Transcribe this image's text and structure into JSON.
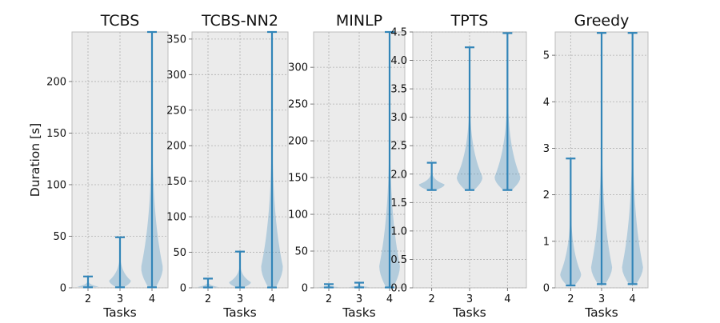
{
  "chart_data": {
    "type": "violin",
    "shared": {
      "xlabel": "Tasks",
      "ylabel": "Duration [s]",
      "categories": [
        "2",
        "3",
        "4"
      ],
      "color": "#3285b8",
      "grid": true
    },
    "panels": [
      {
        "title": "TCBS",
        "ylim": [
          0,
          248
        ],
        "yticks": [
          0,
          50,
          100,
          150,
          200
        ],
        "series": [
          {
            "task": "2",
            "min": 0.5,
            "max": 11,
            "peak": 1
          },
          {
            "task": "3",
            "min": 0.5,
            "max": 49,
            "peak": 7
          },
          {
            "task": "4",
            "min": 0.5,
            "max": 248,
            "peak": 20
          }
        ]
      },
      {
        "title": "TCBS-NN2",
        "ylim": [
          0,
          360
        ],
        "yticks": [
          0,
          50,
          100,
          150,
          200,
          250,
          300,
          350
        ],
        "series": [
          {
            "task": "2",
            "min": 0.5,
            "max": 13,
            "peak": 1
          },
          {
            "task": "3",
            "min": 0.5,
            "max": 51,
            "peak": 8
          },
          {
            "task": "4",
            "min": 0.5,
            "max": 360,
            "peak": 30
          }
        ]
      },
      {
        "title": "MINLP",
        "ylim": [
          0,
          348
        ],
        "yticks": [
          0,
          50,
          100,
          150,
          200,
          250,
          300
        ],
        "series": [
          {
            "task": "2",
            "min": 0.5,
            "max": 5,
            "peak": 1
          },
          {
            "task": "3",
            "min": 0.5,
            "max": 7,
            "peak": 1
          },
          {
            "task": "4",
            "min": 0.5,
            "max": 348,
            "peak": 30
          }
        ]
      },
      {
        "title": "TPTS",
        "ylim": [
          0,
          4.5
        ],
        "yticks": [
          0.0,
          0.5,
          1.0,
          1.5,
          2.0,
          2.5,
          3.0,
          3.5,
          4.0,
          4.5
        ],
        "ytick_labels": [
          "0.0",
          "0.5",
          "1.0",
          "1.5",
          "2.0",
          "2.5",
          "3.0",
          "3.5",
          "4.0",
          "4.5"
        ],
        "series": [
          {
            "task": "2",
            "min": 1.72,
            "max": 2.2,
            "peak": 1.82
          },
          {
            "task": "3",
            "min": 1.72,
            "max": 4.23,
            "peak": 1.95
          },
          {
            "task": "4",
            "min": 1.72,
            "max": 4.48,
            "peak": 1.95
          }
        ]
      },
      {
        "title": "Greedy",
        "ylim": [
          0,
          5.5
        ],
        "yticks": [
          0,
          1,
          2,
          3,
          4,
          5
        ],
        "series": [
          {
            "task": "2",
            "min": 0.05,
            "max": 2.78,
            "peak": 0.3
          },
          {
            "task": "3",
            "min": 0.08,
            "max": 5.48,
            "peak": 0.45
          },
          {
            "task": "4",
            "min": 0.08,
            "max": 5.48,
            "peak": 0.45
          }
        ]
      }
    ]
  }
}
